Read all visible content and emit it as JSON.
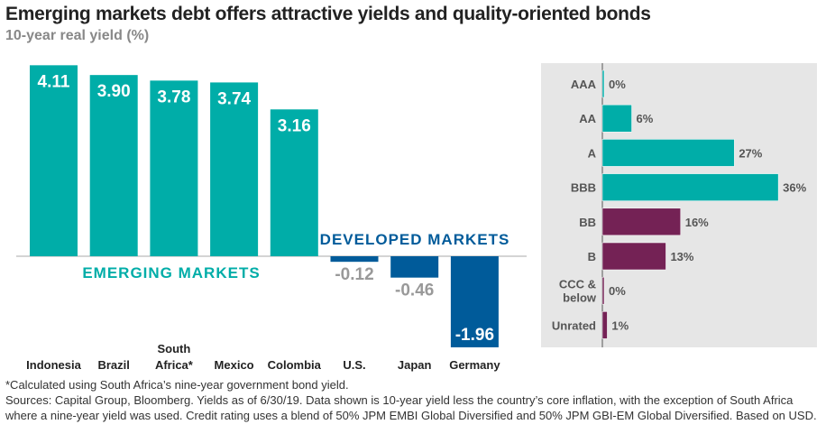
{
  "title": "Emerging markets debt offers attractive yields and quality-oriented bonds",
  "subtitle": "10-year real yield (%)",
  "chart_data": [
    {
      "type": "bar",
      "categories": [
        "Indonesia",
        "Brazil",
        "South Africa*",
        "Mexico",
        "Colombia",
        "U.S.",
        "Japan",
        "Germany"
      ],
      "values": [
        4.11,
        3.9,
        3.78,
        3.74,
        3.16,
        -0.12,
        -0.46,
        -1.96
      ],
      "labels": [
        "4.11",
        "3.90",
        "3.78",
        "3.74",
        "3.16",
        "-0.12",
        "-0.46",
        "-1.96"
      ],
      "groups": [
        {
          "name": "EMERGING MARKETS",
          "color": "#00ada8"
        },
        {
          "name": "DEVELOPED MARKETS",
          "color": "#005b9a"
        }
      ],
      "group_index": [
        0,
        0,
        0,
        0,
        0,
        1,
        1,
        1
      ]
    },
    {
      "type": "bar",
      "orientation": "horizontal",
      "categories": [
        "AAA",
        "AA",
        "A",
        "BBB",
        "BB",
        "B",
        "CCC & below",
        "Unrated"
      ],
      "values": [
        0,
        6,
        27,
        36,
        16,
        13,
        0,
        1
      ],
      "labels": [
        "0%",
        "6%",
        "27%",
        "36%",
        "16%",
        "13%",
        "0%",
        "1%"
      ],
      "colors": [
        "#00ada8",
        "#00ada8",
        "#00ada8",
        "#00ada8",
        "#742255",
        "#742255",
        "#742255",
        "#742255"
      ]
    }
  ],
  "notes": [
    "*Calculated using South Africa’s nine-year government bond yield.",
    "Sources: Capital Group, Bloomberg. Yields as of 6/30/19. Data shown is 10-year yield less the country’s core inflation, with the exception of South Africa where a nine-year yield was used. Credit rating uses a blend of 50% JPM EMBI Global Diversified and 50% JPM GBI-EM Global Diversified. Based on USD."
  ]
}
